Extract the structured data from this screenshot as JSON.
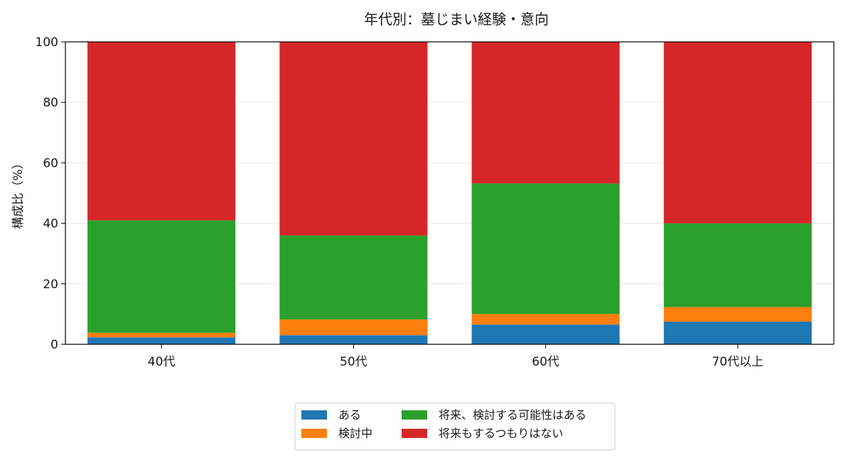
{
  "chart_data": {
    "type": "bar",
    "stacked": true,
    "title": "年代別：墓じまい経験・意向",
    "xlabel": "",
    "ylabel": "構成比（%）",
    "ylim": [
      0,
      100
    ],
    "yticks": [
      "0",
      "20",
      "40",
      "60",
      "80",
      "100"
    ],
    "grid": "horizontal",
    "legend_position": "bottom",
    "categories": [
      "40代",
      "50代",
      "60代",
      "70代以上"
    ],
    "series": [
      {
        "name": "ある",
        "color": "#1f77b4",
        "values": [
          2.3,
          3.0,
          6.5,
          7.5
        ]
      },
      {
        "name": "検討中",
        "color": "#ff7f0e",
        "values": [
          1.5,
          5.2,
          3.5,
          4.8
        ]
      },
      {
        "name": "将来、検討する可能性はある",
        "color": "#2ca02c",
        "values": [
          37.2,
          27.8,
          43.2,
          27.7
        ]
      },
      {
        "name": "将来もするつもりはない",
        "color": "#d62728",
        "values": [
          59.0,
          64.0,
          46.8,
          60.0
        ]
      }
    ]
  }
}
